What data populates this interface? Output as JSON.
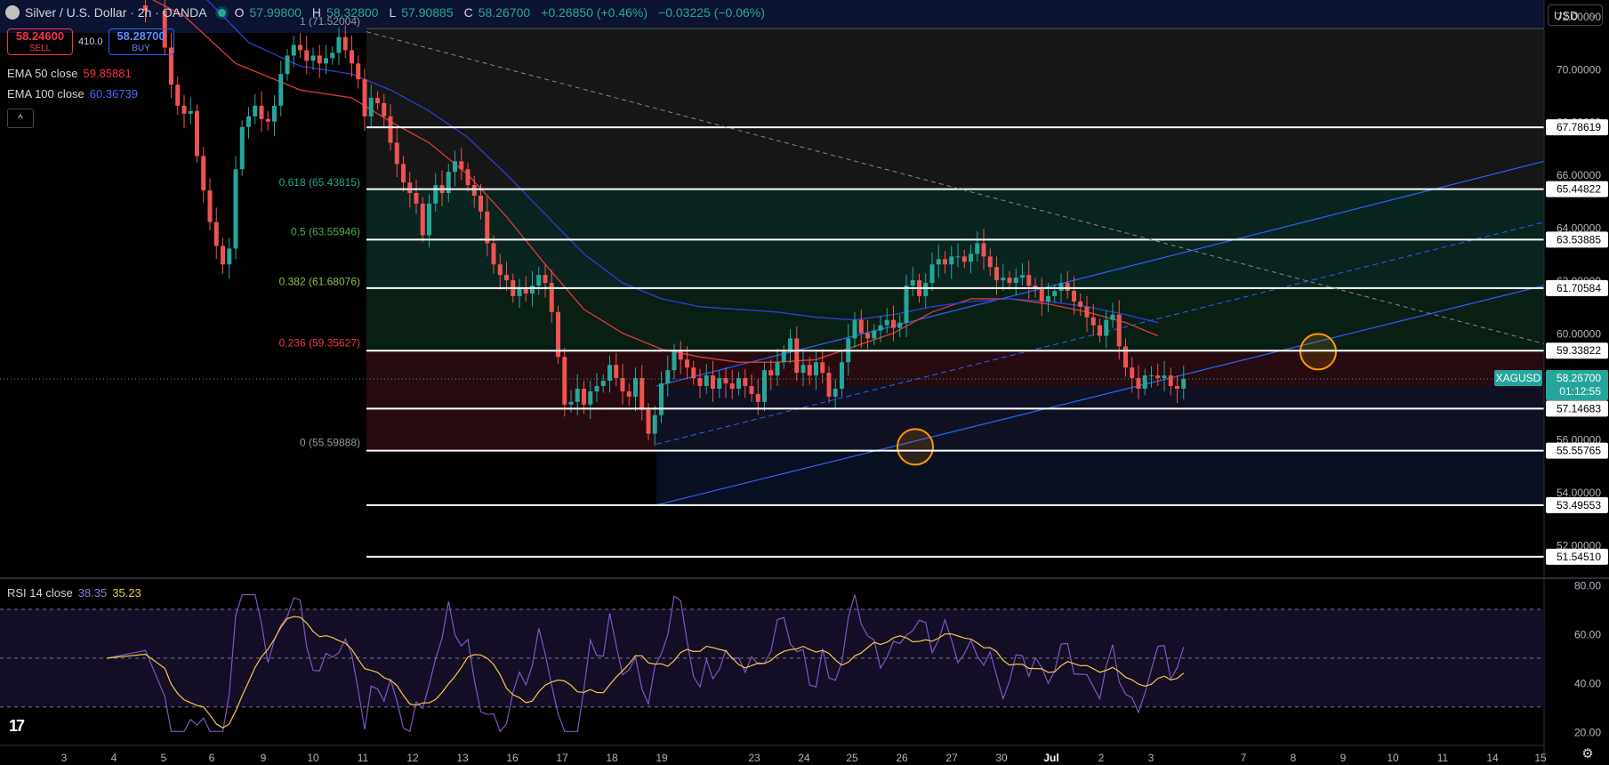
{
  "header": {
    "symbol": "Silver / U.S. Dollar · 2h · OANDA",
    "open_label": "O",
    "open": "57.99800",
    "high_label": "H",
    "high": "58.32800",
    "low_label": "L",
    "low": "57.90885",
    "close_label": "C",
    "close": "58.26700",
    "change": "+0.26850 (+0.46%)",
    "change2": "−0.03225 (−0.06%)"
  },
  "trade": {
    "sell_price": "58.24600",
    "sell_label": "SELL",
    "spread": "410.0",
    "buy_price": "58.28700",
    "buy_label": "BUY"
  },
  "indicators": {
    "ema50_label": "EMA 50 close",
    "ema50_value": "59.85881",
    "ema100_label": "EMA 100 close",
    "ema100_value": "60.36739",
    "collapse_icon": "^"
  },
  "rsi": {
    "label": "RSI 14 close",
    "value": "38.35",
    "ma_value": "35.23"
  },
  "currency": {
    "label": "USD",
    "icon": "chevron-down-icon"
  },
  "colors": {
    "bull": "#26a69a",
    "bear": "#ef5350",
    "ema50": "#e03a3a",
    "ema100": "#2f3fd8",
    "channel": "#2962ff",
    "rsi": "#7e57c2",
    "rsi_ma": "#f7c948",
    "fib_green": "#22ab94",
    "fib_red": "#f23645"
  },
  "chart_data": [
    {
      "type": "candlestick",
      "symbol": "XAGUSD",
      "last_price": "58.26700",
      "countdown": "01:12:55",
      "ylim": [
        50.8,
        72.6
      ],
      "y_ticks": [
        "72.00000",
        "70.00000",
        "68.00000",
        "66.00000",
        "64.00000",
        "62.00000",
        "60.00000",
        "58.00000",
        "56.00000",
        "54.00000",
        "52.00000"
      ],
      "x_ticks": [
        "3",
        "4",
        "5",
        "6",
        "9",
        "10",
        "11",
        "12",
        "13",
        "16",
        "17",
        "18",
        "19",
        "23",
        "24",
        "25",
        "26",
        "27",
        "30",
        "Jul",
        "2",
        "3",
        "7",
        "8",
        "9",
        "10",
        "11",
        "14",
        "15"
      ],
      "horizontal_levels": [
        {
          "label": "67.78619",
          "value": 67.78619
        },
        {
          "label": "65.44822",
          "value": 65.44822
        },
        {
          "label": "63.53885",
          "value": 63.53885
        },
        {
          "label": "61.70584",
          "value": 61.70584
        },
        {
          "label": "59.33822",
          "value": 59.33822
        },
        {
          "label": "57.14683",
          "value": 57.14683
        },
        {
          "label": "55.55765",
          "value": 55.55765
        },
        {
          "label": "53.49553",
          "value": 53.49553
        },
        {
          "label": "51.54510",
          "value": 51.5451
        }
      ],
      "fibonacci": [
        {
          "label": "1 (71.52004)",
          "value": 71.52004
        },
        {
          "label": "0.618 (65.43815)",
          "value": 65.43815
        },
        {
          "label": "0.5 (63.55946)",
          "value": 63.55946
        },
        {
          "label": "0.382 (61.68076)",
          "value": 61.68076
        },
        {
          "label": "0.236 (59.35627)",
          "value": 59.35627
        },
        {
          "label": "0 (55.59888)",
          "value": 55.59888
        }
      ],
      "price_path": [
        [
          0,
          72.4
        ],
        [
          6,
          72.2
        ],
        [
          9,
          70.8
        ],
        [
          10,
          69.4
        ],
        [
          11,
          68.6
        ],
        [
          12,
          68.3
        ],
        [
          13,
          68.4
        ],
        [
          14,
          66.7
        ],
        [
          15,
          65.4
        ],
        [
          16,
          64.2
        ],
        [
          17,
          63.3
        ],
        [
          18,
          62.6
        ],
        [
          19,
          63.2
        ],
        [
          20,
          66.2
        ],
        [
          21,
          67.8
        ],
        [
          22,
          68.2
        ],
        [
          23,
          68.6
        ],
        [
          24,
          68.1
        ],
        [
          25,
          68.0
        ],
        [
          26,
          68.6
        ],
        [
          27,
          69.8
        ],
        [
          28,
          70.5
        ],
        [
          29,
          70.9
        ],
        [
          30,
          70.7
        ],
        [
          31,
          70.3
        ],
        [
          32,
          70.5
        ],
        [
          33,
          70.2
        ],
        [
          34,
          70.4
        ],
        [
          35,
          70.6
        ],
        [
          36,
          71.2
        ],
        [
          37,
          70.7
        ],
        [
          38,
          70.2
        ],
        [
          39,
          69.6
        ],
        [
          40,
          68.2
        ],
        [
          41,
          68.9
        ],
        [
          42,
          68.7
        ],
        [
          43,
          68.2
        ],
        [
          44,
          67.2
        ],
        [
          45,
          66.4
        ],
        [
          46,
          65.7
        ],
        [
          47,
          65.3
        ],
        [
          48,
          64.9
        ],
        [
          49,
          63.7
        ],
        [
          50,
          64.9
        ],
        [
          51,
          65.6
        ],
        [
          52,
          65.3
        ],
        [
          53,
          66.1
        ],
        [
          54,
          66.5
        ],
        [
          55,
          66.2
        ],
        [
          56,
          65.6
        ],
        [
          57,
          65.2
        ],
        [
          58,
          64.6
        ],
        [
          59,
          63.4
        ],
        [
          60,
          62.6
        ],
        [
          61,
          62.2
        ],
        [
          62,
          62.0
        ],
        [
          63,
          61.4
        ],
        [
          64,
          61.7
        ],
        [
          65,
          61.5
        ],
        [
          66,
          61.8
        ],
        [
          67,
          62.2
        ],
        [
          68,
          61.9
        ],
        [
          69,
          60.8
        ],
        [
          70,
          59.1
        ],
        [
          71,
          57.3
        ],
        [
          72,
          57.4
        ],
        [
          73,
          57.9
        ],
        [
          74,
          57.3
        ],
        [
          75,
          57.8
        ],
        [
          76,
          58.0
        ],
        [
          77,
          58.2
        ],
        [
          78,
          58.8
        ],
        [
          79,
          58.3
        ],
        [
          80,
          57.8
        ],
        [
          81,
          57.6
        ],
        [
          82,
          58.3
        ],
        [
          83,
          57.1
        ],
        [
          84,
          56.2
        ],
        [
          85,
          56.9
        ],
        [
          86,
          58.1
        ],
        [
          87,
          58.6
        ],
        [
          88,
          59.3
        ],
        [
          89,
          59.0
        ],
        [
          90,
          58.7
        ],
        [
          91,
          58.3
        ],
        [
          92,
          58.0
        ],
        [
          93,
          58.4
        ],
        [
          94,
          57.9
        ],
        [
          95,
          58.3
        ],
        [
          96,
          58.1
        ],
        [
          97,
          57.9
        ],
        [
          98,
          58.3
        ],
        [
          99,
          58.0
        ],
        [
          100,
          57.7
        ],
        [
          101,
          57.4
        ],
        [
          102,
          58.6
        ],
        [
          103,
          58.4
        ],
        [
          104,
          58.9
        ],
        [
          105,
          59.3
        ],
        [
          106,
          59.8
        ],
        [
          107,
          58.5
        ],
        [
          108,
          58.8
        ],
        [
          109,
          58.4
        ],
        [
          110,
          58.9
        ],
        [
          111,
          58.5
        ],
        [
          112,
          57.6
        ],
        [
          113,
          57.9
        ],
        [
          114,
          58.9
        ],
        [
          115,
          59.8
        ],
        [
          116,
          60.5
        ],
        [
          117,
          60.0
        ],
        [
          118,
          59.8
        ],
        [
          119,
          60.1
        ],
        [
          120,
          60.3
        ],
        [
          121,
          60.5
        ],
        [
          122,
          60.2
        ],
        [
          123,
          60.4
        ],
        [
          124,
          61.8
        ],
        [
          125,
          62.0
        ],
        [
          126,
          61.4
        ],
        [
          127,
          61.9
        ],
        [
          128,
          62.6
        ],
        [
          129,
          62.8
        ],
        [
          130,
          62.6
        ],
        [
          131,
          62.9
        ],
        [
          132,
          62.9
        ],
        [
          133,
          62.7
        ],
        [
          134,
          63.0
        ],
        [
          135,
          63.4
        ],
        [
          136,
          62.9
        ],
        [
          137,
          62.5
        ],
        [
          138,
          62.0
        ],
        [
          139,
          62.1
        ],
        [
          140,
          61.9
        ],
        [
          141,
          62.1
        ],
        [
          142,
          62.2
        ],
        [
          143,
          61.8
        ],
        [
          144,
          61.7
        ],
        [
          145,
          61.2
        ],
        [
          146,
          61.4
        ],
        [
          147,
          61.6
        ],
        [
          148,
          61.9
        ],
        [
          149,
          61.6
        ],
        [
          150,
          61.2
        ],
        [
          151,
          61.0
        ],
        [
          152,
          60.6
        ],
        [
          153,
          60.3
        ],
        [
          154,
          59.9
        ],
        [
          155,
          60.5
        ],
        [
          156,
          60.7
        ],
        [
          157,
          59.5
        ],
        [
          158,
          58.7
        ],
        [
          159,
          58.3
        ],
        [
          160,
          57.9
        ],
        [
          161,
          58.4
        ],
        [
          162,
          58.4
        ],
        [
          163,
          58.3
        ],
        [
          164,
          58.4
        ],
        [
          165,
          58.0
        ],
        [
          166,
          57.9
        ],
        [
          167,
          58.27
        ]
      ],
      "ema50": [
        [
          0,
          73.5
        ],
        [
          12,
          72.0
        ],
        [
          20,
          70.2
        ],
        [
          30,
          69.2
        ],
        [
          38,
          68.9
        ],
        [
          44,
          68.0
        ],
        [
          50,
          67.2
        ],
        [
          56,
          66.0
        ],
        [
          62,
          64.4
        ],
        [
          68,
          62.6
        ],
        [
          74,
          60.9
        ],
        [
          80,
          60.0
        ],
        [
          86,
          59.4
        ],
        [
          92,
          59.1
        ],
        [
          98,
          58.9
        ],
        [
          104,
          58.9
        ],
        [
          110,
          59.0
        ],
        [
          116,
          59.5
        ],
        [
          122,
          60.0
        ],
        [
          128,
          60.8
        ],
        [
          134,
          61.3
        ],
        [
          140,
          61.3
        ],
        [
          146,
          61.1
        ],
        [
          152,
          60.8
        ],
        [
          158,
          60.4
        ],
        [
          163,
          59.9
        ]
      ],
      "ema100": [
        [
          0,
          75.0
        ],
        [
          14,
          73.0
        ],
        [
          22,
          71.0
        ],
        [
          30,
          70.1
        ],
        [
          38,
          69.8
        ],
        [
          44,
          69.2
        ],
        [
          50,
          68.4
        ],
        [
          56,
          67.4
        ],
        [
          62,
          66.0
        ],
        [
          68,
          64.5
        ],
        [
          74,
          63.0
        ],
        [
          80,
          61.9
        ],
        [
          86,
          61.3
        ],
        [
          92,
          61.0
        ],
        [
          98,
          60.9
        ],
        [
          104,
          60.8
        ],
        [
          110,
          60.6
        ],
        [
          116,
          60.5
        ],
        [
          122,
          60.7
        ],
        [
          128,
          61.0
        ],
        [
          134,
          61.2
        ],
        [
          140,
          61.3
        ],
        [
          146,
          61.2
        ],
        [
          152,
          61.0
        ],
        [
          158,
          60.7
        ],
        [
          163,
          60.4
        ]
      ],
      "rsi": {
        "label": "RSI 14 close",
        "value": 38.35,
        "ma": 35.23,
        "ylim": [
          15,
          82
        ],
        "levels": [
          70,
          50,
          30
        ],
        "y_ticks": [
          "80.00",
          "60.00",
          "40.00",
          "20.00"
        ]
      }
    }
  ]
}
